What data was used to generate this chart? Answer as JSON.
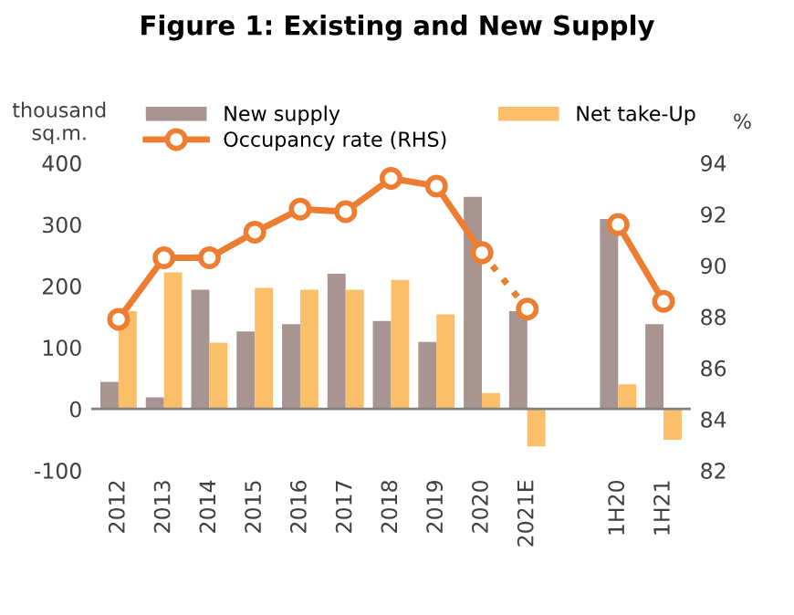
{
  "chart_data": {
    "type": "bar",
    "title": "Figure 1: Existing and New Supply",
    "ylabel": "thousand\nsq.m.",
    "y2label": "%",
    "categories": [
      "2012",
      "2013",
      "2014",
      "2015",
      "2016",
      "2017",
      "2018",
      "2019",
      "2020",
      "2021E",
      null,
      "1H20",
      "1H21"
    ],
    "series": [
      {
        "name": "New supply",
        "color": "#a89491",
        "values": [
          44,
          19,
          194,
          126,
          138,
          220,
          143,
          109,
          345,
          159,
          null,
          309,
          138
        ]
      },
      {
        "name": "Net take-Up",
        "color": "#fbbf6a",
        "values": [
          159,
          222,
          108,
          197,
          194,
          194,
          210,
          154,
          26,
          -61,
          null,
          40,
          -50
        ]
      },
      {
        "name": "Occupancy rate (RHS)",
        "type": "line",
        "axis": "y2",
        "color": "#ed7d31",
        "marker": "circle",
        "line_style": "solid",
        "values": [
          87.9,
          90.3,
          90.3,
          91.3,
          92.2,
          92.1,
          93.4,
          93.1,
          90.5,
          null,
          null,
          91.6,
          88.6
        ]
      },
      {
        "type": "line",
        "axis": "y2",
        "color": "#ed7d31",
        "marker": "circle",
        "line_style": "dotted",
        "values": [
          null,
          null,
          null,
          null,
          null,
          null,
          null,
          null,
          90.5,
          88.3,
          null,
          null,
          null
        ]
      }
    ],
    "ylim": [
      -100,
      400
    ],
    "yticks": [
      -100,
      0,
      100,
      200,
      300,
      400
    ],
    "y2lim": [
      82,
      94
    ],
    "y2ticks": [
      82,
      84,
      86,
      88,
      90,
      92,
      94
    ],
    "ref_lines": [
      {
        "axis": "y",
        "value": 0,
        "color": "#808080",
        "line_style": "solid"
      }
    ],
    "legend": "top",
    "grid": false
  }
}
